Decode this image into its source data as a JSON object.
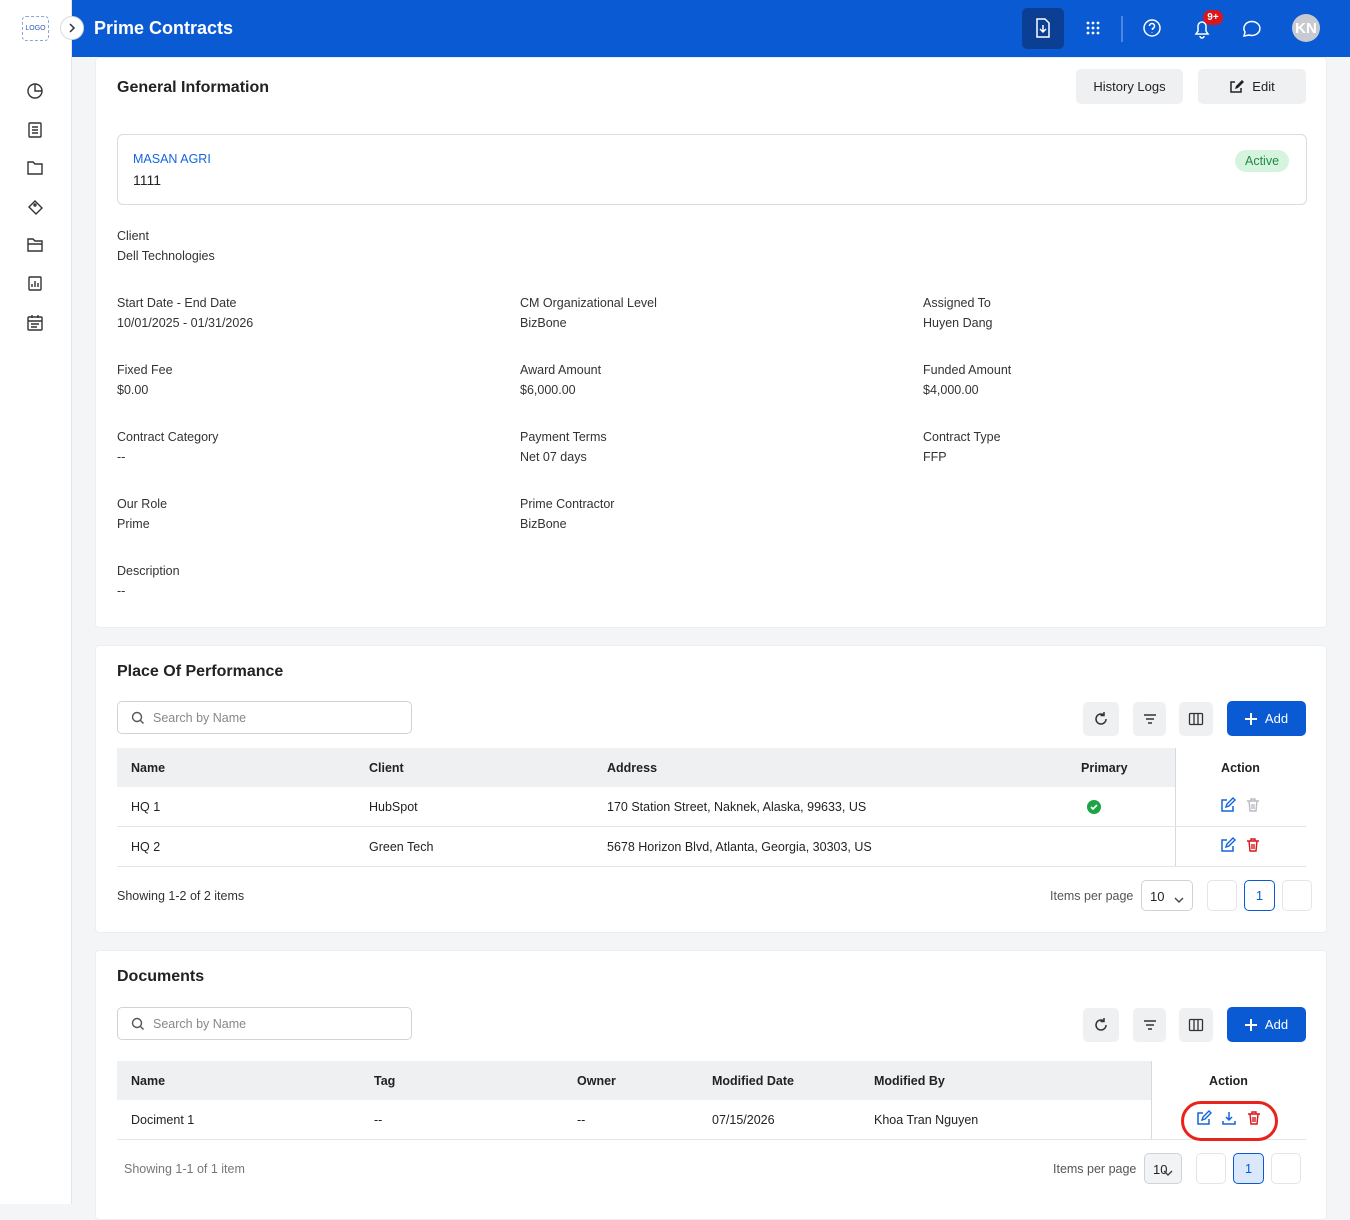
{
  "header": {
    "logo": "LOGO",
    "title": "Prime Contracts",
    "notification_badge": "9+",
    "avatar": "KN"
  },
  "general": {
    "title": "General Information",
    "history_button": "History Logs",
    "edit_button": "Edit",
    "card": {
      "name": "MASAN AGRI",
      "code": "1111",
      "status": "Active"
    },
    "fields": [
      [
        {
          "label": "Client",
          "value": "Dell Technologies"
        }
      ],
      [
        {
          "label": "Start Date - End Date",
          "value": "10/01/2025 - 01/31/2026"
        },
        {
          "label": "CM Organizational Level",
          "value": "BizBone"
        },
        {
          "label": "Assigned To",
          "value": "Huyen Dang"
        }
      ],
      [
        {
          "label": "Fixed Fee",
          "value": "$0.00"
        },
        {
          "label": "Award Amount",
          "value": "$6,000.00"
        },
        {
          "label": "Funded Amount",
          "value": "$4,000.00"
        }
      ],
      [
        {
          "label": "Contract Category",
          "value": "--"
        },
        {
          "label": "Payment Terms",
          "value": "Net 07 days"
        },
        {
          "label": "Contract Type",
          "value": "FFP"
        }
      ],
      [
        {
          "label": "Our Role",
          "value": "Prime"
        },
        {
          "label": "Prime Contractor",
          "value": "BizBone"
        }
      ],
      [
        {
          "label": "Description",
          "value": "--"
        }
      ]
    ]
  },
  "place": {
    "title": "Place Of Performance",
    "search_placeholder": "Search by Name",
    "add_button": "Add",
    "columns": [
      "Name",
      "Client",
      "Address",
      "Primary",
      "Action"
    ],
    "rows": [
      [
        "HQ 1",
        "HubSpot",
        "170 Station Street, Naknek, Alaska, 99633, US",
        true
      ],
      [
        "HQ 2",
        "Green Tech",
        "5678 Horizon Blvd, Atlanta, Georgia, 30303, US",
        false
      ]
    ],
    "showing": "Showing 1-2 of 2 items",
    "items_per_page_label": "Items per page",
    "items_per_page": "10",
    "page": "1"
  },
  "documents": {
    "title": "Documents",
    "search_placeholder": "Search by Name",
    "add_button": "Add",
    "columns": [
      "Name",
      "Tag",
      "Owner",
      "Modified Date",
      "Modified By",
      "Action"
    ],
    "rows": [
      [
        "Dociment 1",
        "--",
        "--",
        "07/15/2026",
        "Khoa Tran Nguyen"
      ]
    ],
    "showing": "Showing 1-1 of 1 item",
    "items_per_page_label": "Items per page",
    "items_per_page": "10",
    "page": "1"
  }
}
